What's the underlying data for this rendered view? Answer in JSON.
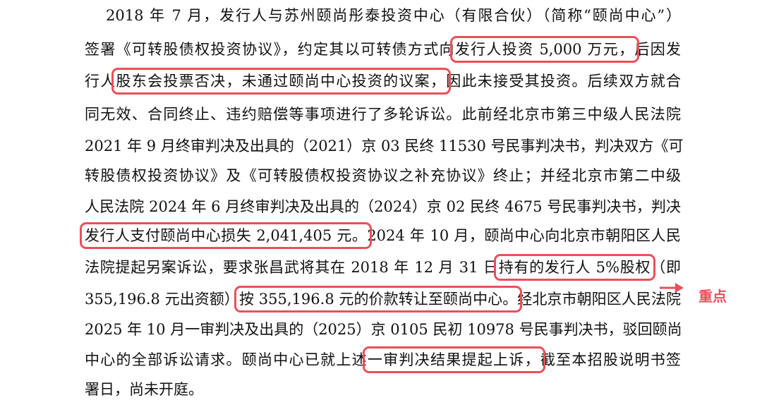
{
  "paragraph": {
    "lines": [
      {
        "segments": [
          {
            "text": "2018 年 7 月，发行人与苏州颐尚彤泰投资中心（有限合伙）（简称“颐尚中心”）",
            "box": false
          }
        ]
      },
      {
        "segments": [
          {
            "text": "签署《可转股债权投资协议》，约定其以可转债方式向",
            "box": false
          },
          {
            "text": "发行人投资 5,000 万元，",
            "box": true
          },
          {
            "text": "后因发",
            "box": false
          }
        ]
      },
      {
        "segments": [
          {
            "text": "行人",
            "box": false
          },
          {
            "text": "股东会投票否决，未通过颐尚中心投资的议案，",
            "box": true
          },
          {
            "text": "因此未接受其投资。后续双方就合",
            "box": false
          }
        ]
      },
      {
        "segments": [
          {
            "text": "同无效、合同终止、违约赔偿等事项进行了多轮诉讼。此前经北京市第三中级人民法院",
            "box": false
          }
        ]
      },
      {
        "segments": [
          {
            "text": "2021 年 9 月终审判决及出具的（2021）京 03 民终 11530 号民事判决书，判决双方《可",
            "box": false
          }
        ]
      },
      {
        "segments": [
          {
            "text": "转股债权投资协议》及《可转股债权投资协议之补充协议》终止；并经北京市第二中级",
            "box": false
          }
        ]
      },
      {
        "segments": [
          {
            "text": "人民法院 2024 年 6 月终审判决及出具的（2024）京 02 民终 4675 号民事判决书，判决",
            "box": false
          }
        ]
      },
      {
        "segments": [
          {
            "text": "发行人支付颐尚中心损失 2,041,405 元。",
            "box": true
          },
          {
            "text": "2024 年 10 月，颐尚中心向北京市朝阳区人民",
            "box": false
          }
        ]
      },
      {
        "segments": [
          {
            "text": "法院提起另案诉讼，要求张昌武将其在 2018 年 12 月 31 日",
            "box": false
          },
          {
            "text": "持有的发行人 5%股权",
            "box": true
          },
          {
            "text": "（即",
            "box": false
          }
        ]
      },
      {
        "segments": [
          {
            "text": "355,196.8 元出资额）",
            "box": false
          },
          {
            "text": "按 355,196.8 元的价款转让至颐尚中心。",
            "box": true
          },
          {
            "text": "经北京市朝阳区人民法院",
            "box": false
          }
        ]
      },
      {
        "segments": [
          {
            "text": "2025 年 10 月一审判决及出具的（2025）京 0105 民初 10978 号民事判决书，驳回颐尚",
            "box": false
          }
        ]
      },
      {
        "segments": [
          {
            "text": "中心的全部诉讼请求。颐尚中心已就上述",
            "box": false
          },
          {
            "text": "一审判决结果提起上诉，",
            "box": true
          },
          {
            "text": "截至本招股说明书签",
            "box": false
          }
        ]
      },
      {
        "segments": [
          {
            "text": "署日，尚未开庭。",
            "box": false
          }
        ]
      }
    ]
  },
  "annotation": {
    "label": "重点",
    "color": "#e9505a",
    "icon": "arrow-right-icon"
  }
}
